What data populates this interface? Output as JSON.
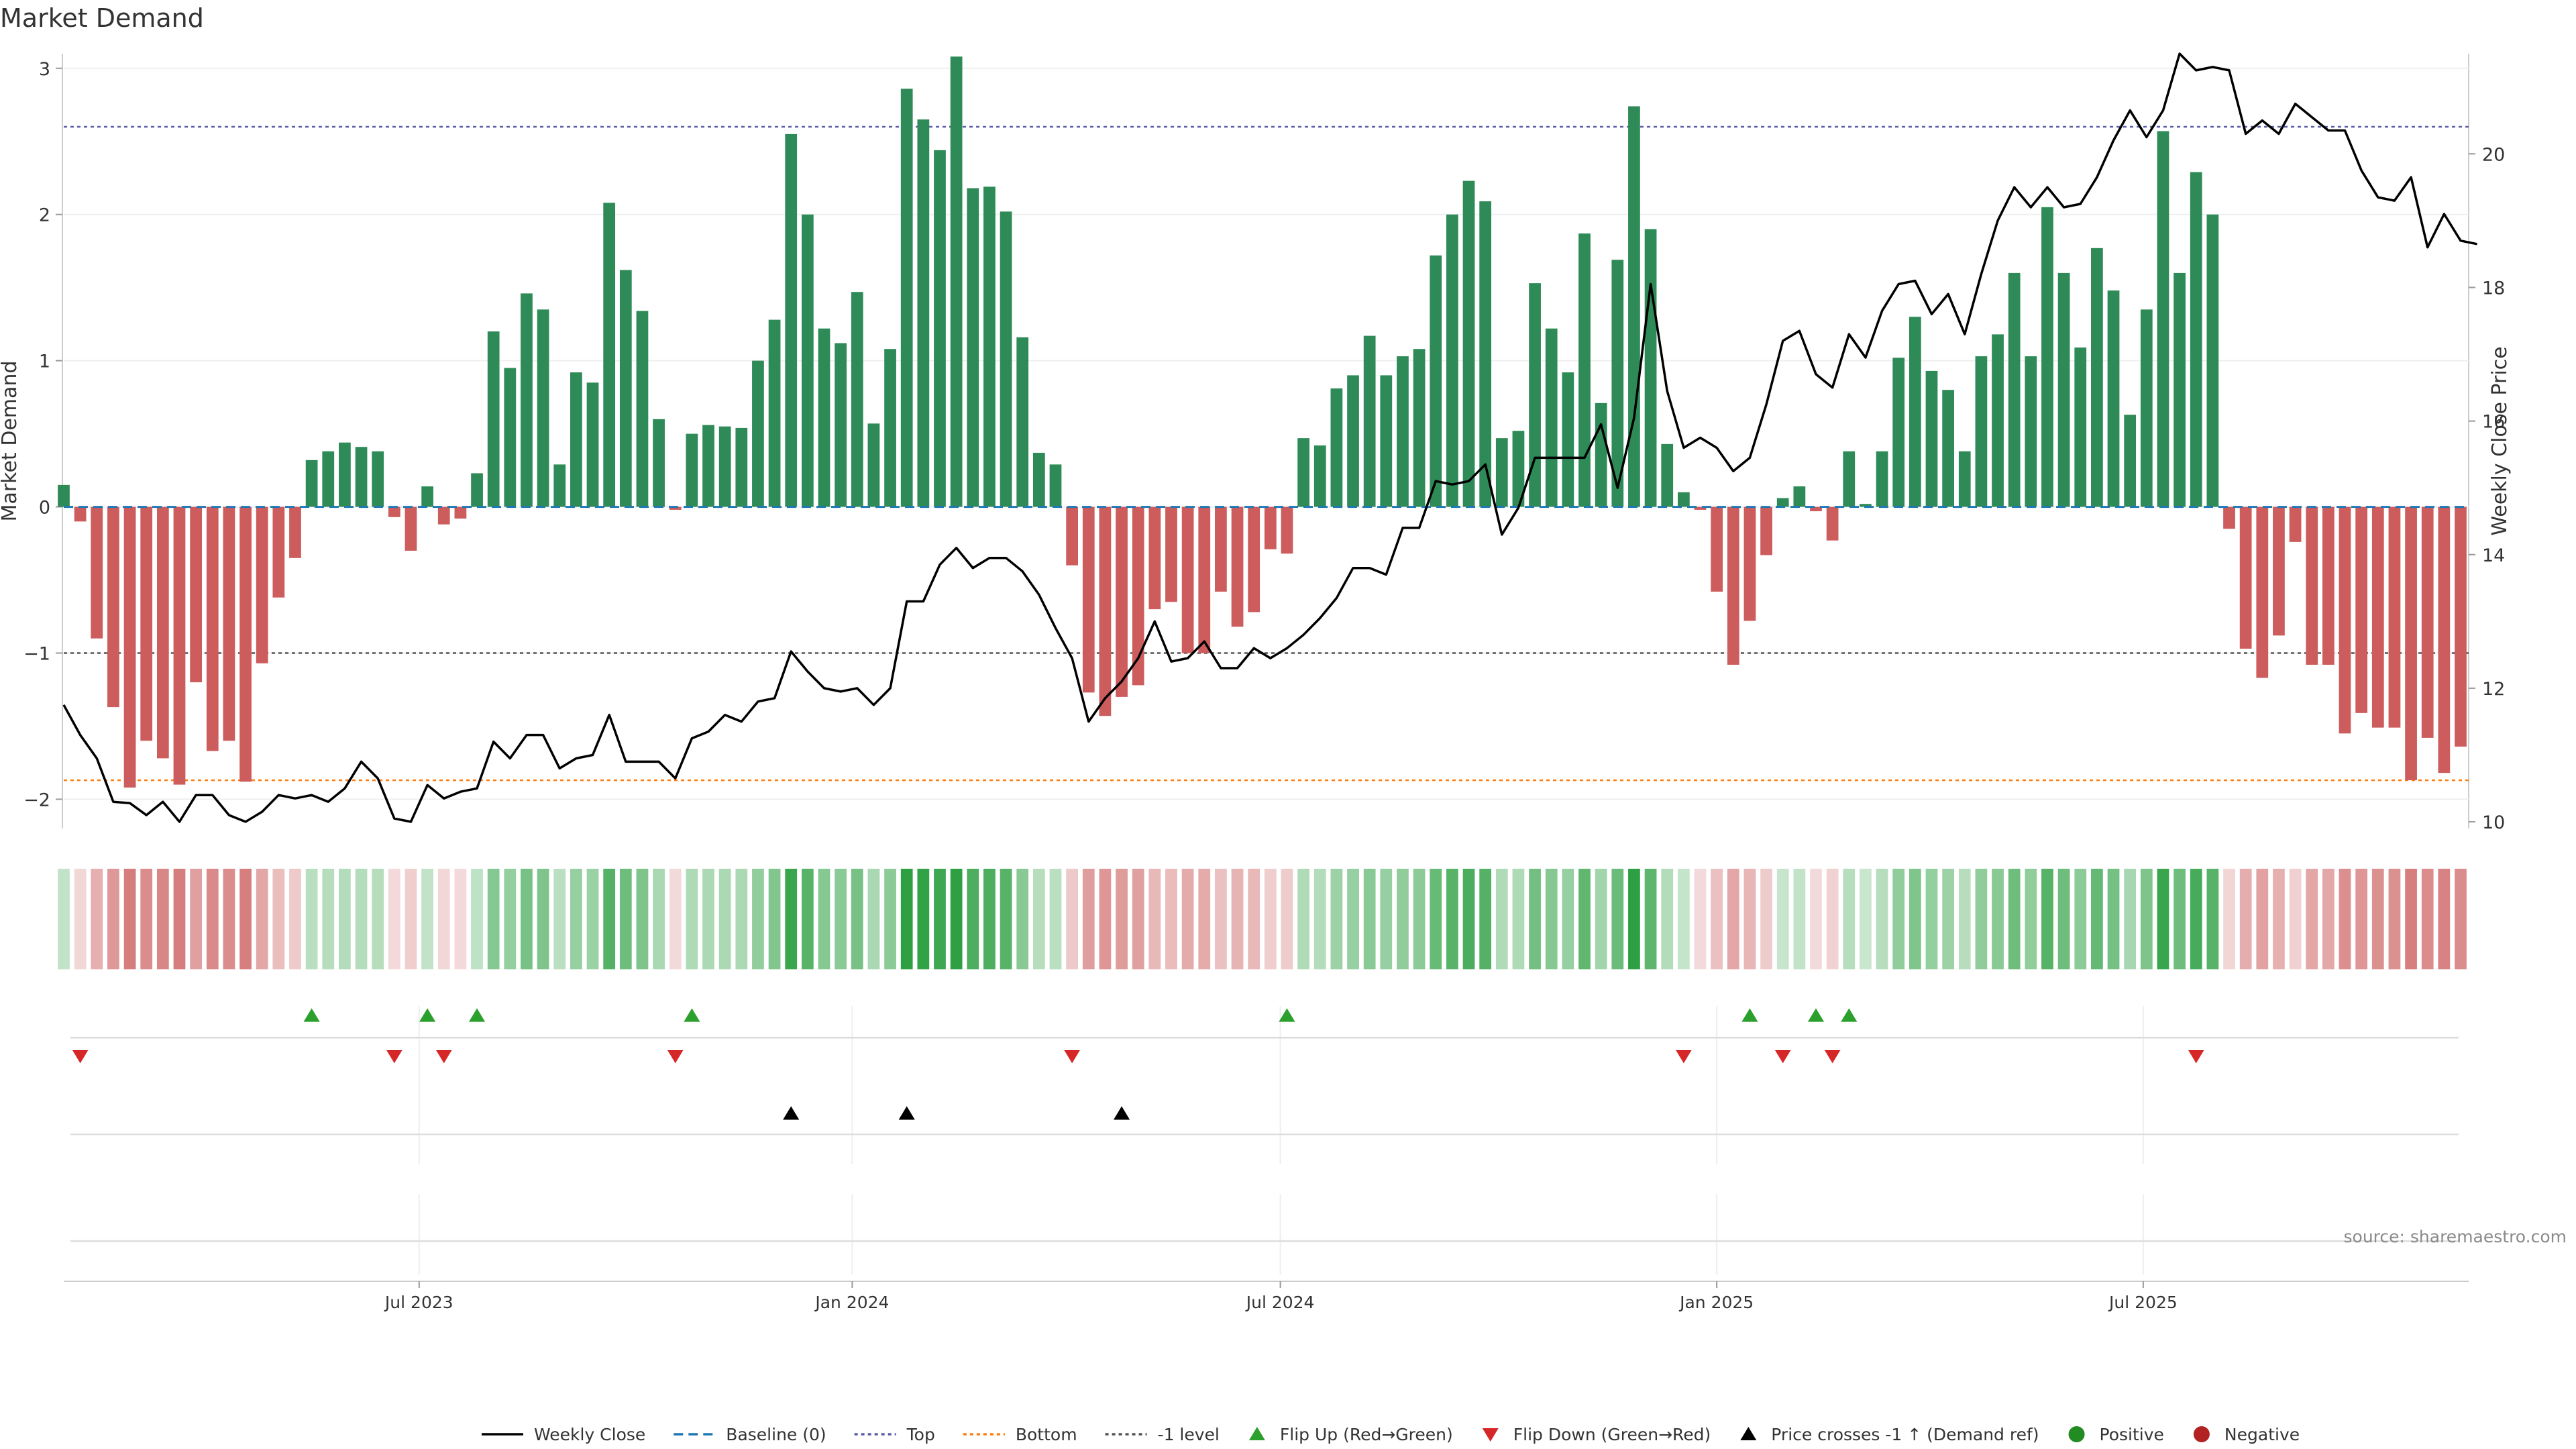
{
  "page": {
    "title": "Market Demand",
    "source": "source: sharemaestro.com"
  },
  "chart_data": {
    "type": "bar",
    "title": "Market Demand",
    "ylabel_left": "Market Demand",
    "ylabel_right": "Weekly Close Price",
    "yticks_left": [
      -2,
      -1,
      0,
      1,
      2,
      3
    ],
    "yticks_right": [
      10,
      12,
      14,
      16,
      18,
      20
    ],
    "ylim_left": [
      -2.2,
      3.1
    ],
    "ylim_right": [
      9.9,
      21.5
    ],
    "x_start": "2023-02-03",
    "x_interval": "weekly",
    "x_tick_labels": [
      "Jul 2023",
      "Jan 2024",
      "Jul 2024",
      "Jan 2025",
      "Jul 2025"
    ],
    "x_tick_weeks": [
      21.5,
      47.7,
      73.6,
      100.0,
      125.8
    ],
    "top_level": 2.6,
    "bottom_level": -1.87,
    "neg_one_level": -1.0,
    "demand": [
      0.15,
      -0.1,
      -0.9,
      -1.37,
      -1.92,
      -1.6,
      -1.72,
      -1.9,
      -1.2,
      -1.67,
      -1.6,
      -1.88,
      -1.07,
      -0.62,
      -0.35,
      0.32,
      0.38,
      0.44,
      0.41,
      0.38,
      -0.07,
      -0.3,
      0.14,
      -0.12,
      -0.08,
      0.23,
      1.2,
      0.95,
      1.46,
      1.35,
      0.29,
      0.92,
      0.85,
      2.08,
      1.62,
      1.34,
      0.6,
      -0.02,
      0.5,
      0.56,
      0.55,
      0.54,
      1.0,
      1.28,
      2.55,
      2.0,
      1.22,
      1.12,
      1.47,
      0.57,
      1.08,
      2.86,
      2.65,
      2.44,
      3.08,
      2.18,
      2.19,
      2.02,
      1.16,
      0.37,
      0.29,
      -0.4,
      -1.27,
      -1.43,
      -1.3,
      -1.22,
      -0.7,
      -0.65,
      -1.0,
      -1.0,
      -0.58,
      -0.82,
      -0.72,
      -0.29,
      -0.32,
      0.47,
      0.42,
      0.81,
      0.9,
      1.17,
      0.9,
      1.03,
      1.08,
      1.72,
      2.0,
      2.23,
      2.09,
      0.47,
      0.52,
      1.53,
      1.22,
      0.92,
      1.87,
      0.71,
      1.69,
      2.74,
      1.9,
      0.43,
      0.1,
      -0.02,
      -0.58,
      -1.08,
      -0.78,
      -0.33,
      0.06,
      0.14,
      -0.03,
      -0.23,
      0.38,
      0.02,
      0.38,
      1.02,
      1.3,
      0.93,
      0.8,
      0.38,
      1.03,
      1.18,
      1.6,
      1.03,
      2.05,
      1.6,
      1.09,
      1.77,
      1.48,
      0.63,
      1.35,
      2.57,
      1.6,
      2.29,
      2.0,
      -0.15,
      -0.97,
      -1.17,
      -0.88,
      -0.24,
      -1.08,
      -1.08,
      -1.55,
      -1.41,
      -1.51,
      -1.51,
      -1.87,
      -1.58,
      -1.82,
      -1.64
    ],
    "close": [
      11.75,
      11.3,
      10.95,
      10.3,
      10.28,
      10.1,
      10.3,
      10.0,
      10.4,
      10.4,
      10.1,
      10.0,
      10.15,
      10.4,
      10.35,
      10.4,
      10.3,
      10.5,
      10.9,
      10.65,
      10.05,
      10.0,
      10.55,
      10.35,
      10.45,
      10.5,
      11.2,
      10.95,
      11.3,
      11.3,
      10.8,
      10.95,
      11.0,
      11.6,
      10.9,
      10.9,
      10.9,
      10.65,
      11.25,
      11.35,
      11.6,
      11.5,
      11.8,
      11.85,
      12.55,
      12.25,
      12.0,
      11.95,
      12.0,
      11.75,
      12.0,
      13.3,
      13.3,
      13.85,
      14.1,
      13.8,
      13.95,
      13.95,
      13.75,
      13.4,
      12.9,
      12.45,
      11.5,
      11.85,
      12.1,
      12.45,
      13.0,
      12.4,
      12.45,
      12.7,
      12.3,
      12.3,
      12.6,
      12.45,
      12.6,
      12.8,
      13.05,
      13.35,
      13.8,
      13.8,
      13.7,
      14.4,
      14.4,
      15.1,
      15.05,
      15.1,
      15.35,
      14.3,
      14.7,
      15.45,
      15.45,
      15.45,
      15.45,
      15.95,
      15.0,
      16.05,
      18.05,
      16.45,
      15.6,
      15.75,
      15.6,
      15.25,
      15.45,
      16.25,
      17.2,
      17.35,
      16.7,
      16.5,
      17.3,
      16.95,
      17.65,
      18.05,
      18.1,
      17.6,
      17.9,
      17.3,
      18.2,
      19.0,
      19.5,
      19.2,
      19.5,
      19.2,
      19.25,
      19.65,
      20.2,
      20.65,
      20.25,
      20.65,
      21.5,
      21.25,
      21.3,
      21.25,
      20.3,
      20.5,
      20.3,
      20.75,
      20.55,
      20.35,
      20.35,
      19.75,
      19.35,
      19.3,
      19.65,
      18.6,
      19.1,
      18.7,
      18.65
    ],
    "flip_up": [
      15,
      22,
      25,
      38,
      74,
      102,
      106,
      108
    ],
    "flip_down": [
      1,
      20,
      23,
      37,
      61,
      98,
      104,
      107,
      129
    ],
    "price_cross": [
      44,
      51,
      64
    ],
    "colors": {
      "positive": "#2e8b57",
      "negative": "#cd5c5c",
      "flip_up": "#2ca02c",
      "flip_down": "#d62728",
      "cross": "#000000",
      "baseline": "#1f77b4",
      "top": "#5d5da8",
      "bottom": "#ff7f0e",
      "neg_one": "#555555",
      "positive_dot": "#228b22",
      "negative_dot": "#b22222"
    },
    "legend": [
      {
        "label": "Weekly Close",
        "symbol": "line-solid",
        "color": "#000000"
      },
      {
        "label": "Baseline (0)",
        "symbol": "line-dashed",
        "color": "#1f77b4"
      },
      {
        "label": "Top",
        "symbol": "line-dotted",
        "color": "#5d5da8"
      },
      {
        "label": "Bottom",
        "symbol": "line-dotted",
        "color": "#ff7f0e"
      },
      {
        "label": "-1 level",
        "symbol": "line-dotted",
        "color": "#555555"
      },
      {
        "label": "Flip Up (Red→Green)",
        "symbol": "triangle-up",
        "color": "#2ca02c"
      },
      {
        "label": "Flip Down (Green→Red)",
        "symbol": "triangle-down",
        "color": "#d62728"
      },
      {
        "label": "Price crosses -1 ↑ (Demand ref)",
        "symbol": "triangle-up",
        "color": "#000000"
      },
      {
        "label": "Positive",
        "symbol": "circle",
        "color": "#228b22"
      },
      {
        "label": "Negative",
        "symbol": "circle",
        "color": "#b22222"
      }
    ],
    "legend_position": "bottom"
  }
}
